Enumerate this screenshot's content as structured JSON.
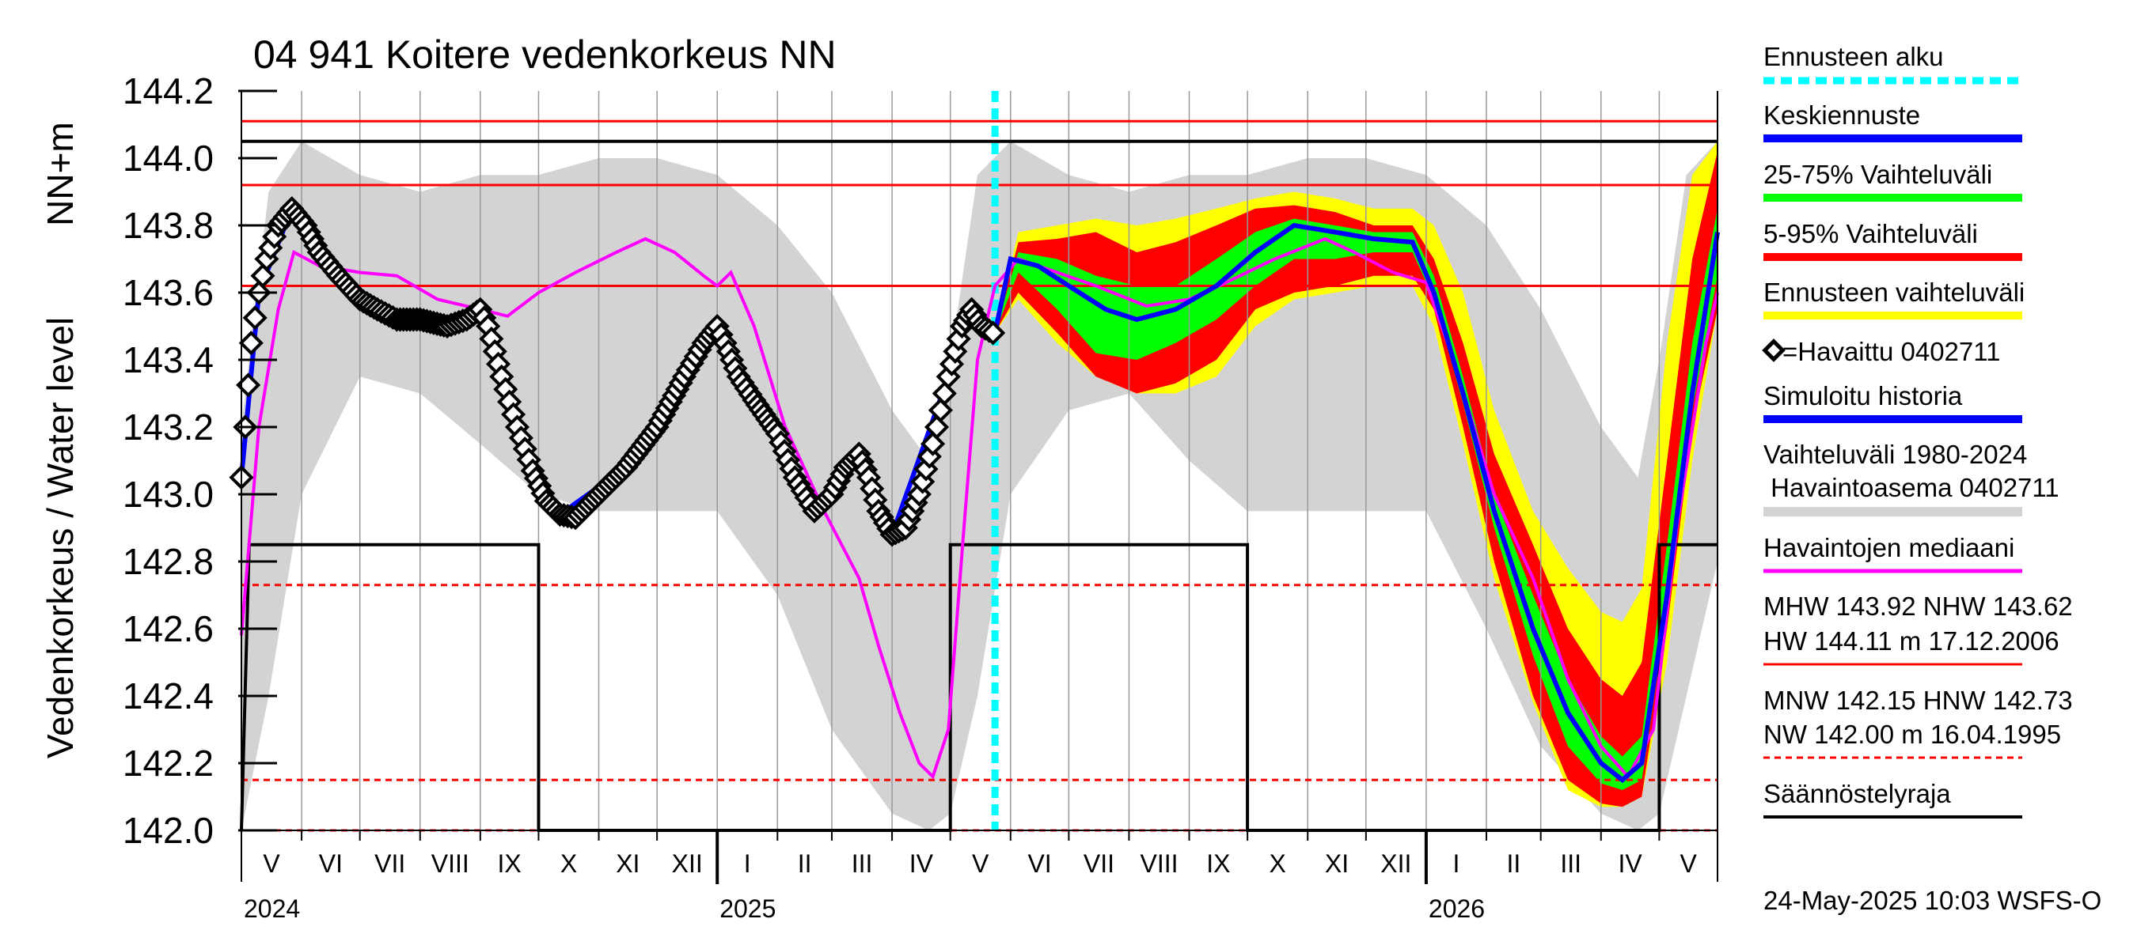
{
  "chart_data": {
    "type": "line",
    "title": "04 941 Koitere vedenkorkeus NN",
    "ylabel": "Vedenkorkeus / Water level",
    "yunit": "NN+m",
    "ylim": [
      142.0,
      144.2
    ],
    "yticks": [
      "142.0",
      "142.2",
      "142.4",
      "142.6",
      "142.8",
      "143.0",
      "143.2",
      "143.4",
      "143.6",
      "143.8",
      "144.0",
      "144.2"
    ],
    "xlim": [
      "2024-05-01",
      "2026-05-31"
    ],
    "month_labels": [
      "V",
      "VI",
      "VII",
      "VIII",
      "IX",
      "X",
      "XI",
      "XII",
      "I",
      "II",
      "III",
      "IV",
      "V",
      "VI",
      "VII",
      "VIII",
      "IX",
      "X",
      "XI",
      "XII",
      "I",
      "II",
      "III",
      "IV",
      "V"
    ],
    "year_labels": [
      "2024",
      "2025",
      "2026"
    ],
    "forecast_start": "2025-05-24",
    "reference_lines": {
      "HW": 144.11,
      "MHW": 143.92,
      "NHW": 143.62,
      "HNW": 142.73,
      "MNW": 142.15,
      "NW": 142.0,
      "upper_black": 144.05
    },
    "regulation_limit": [
      {
        "date": "2024-05-01",
        "value": 142.0
      },
      {
        "date": "2024-05-05",
        "value": 142.85
      },
      {
        "date": "2024-10-01",
        "value": 142.85
      },
      {
        "date": "2024-10-01",
        "value": 142.0
      },
      {
        "date": "2025-05-01",
        "value": 142.0
      },
      {
        "date": "2025-05-01",
        "value": 142.85
      },
      {
        "date": "2025-10-01",
        "value": 142.85
      },
      {
        "date": "2025-10-01",
        "value": 142.0
      },
      {
        "date": "2026-05-01",
        "value": 142.0
      },
      {
        "date": "2026-05-01",
        "value": 142.85
      },
      {
        "date": "2026-05-31",
        "value": 142.85
      }
    ],
    "observed": [
      {
        "date": "2024-05-01",
        "value": 143.05
      },
      {
        "date": "2024-05-03",
        "value": 143.2
      },
      {
        "date": "2024-05-06",
        "value": 143.45
      },
      {
        "date": "2024-05-10",
        "value": 143.6
      },
      {
        "date": "2024-05-14",
        "value": 143.7
      },
      {
        "date": "2024-05-20",
        "value": 143.8
      },
      {
        "date": "2024-05-27",
        "value": 143.85
      },
      {
        "date": "2024-06-03",
        "value": 143.8
      },
      {
        "date": "2024-06-10",
        "value": 143.72
      },
      {
        "date": "2024-06-20",
        "value": 143.65
      },
      {
        "date": "2024-07-01",
        "value": 143.58
      },
      {
        "date": "2024-07-10",
        "value": 143.55
      },
      {
        "date": "2024-07-20",
        "value": 143.52
      },
      {
        "date": "2024-08-01",
        "value": 143.52
      },
      {
        "date": "2024-08-15",
        "value": 143.5
      },
      {
        "date": "2024-08-25",
        "value": 143.52
      },
      {
        "date": "2024-09-01",
        "value": 143.55
      },
      {
        "date": "2024-09-05",
        "value": 143.5
      },
      {
        "date": "2024-09-12",
        "value": 143.35
      },
      {
        "date": "2024-09-20",
        "value": 143.2
      },
      {
        "date": "2024-09-28",
        "value": 143.07
      },
      {
        "date": "2024-10-05",
        "value": 142.98
      },
      {
        "date": "2024-10-12",
        "value": 142.94
      },
      {
        "date": "2024-10-20",
        "value": 142.93
      },
      {
        "date": "2024-11-01",
        "value": 143.0
      },
      {
        "date": "2024-11-15",
        "value": 143.08
      },
      {
        "date": "2024-12-01",
        "value": 143.2
      },
      {
        "date": "2024-12-15",
        "value": 143.35
      },
      {
        "date": "2024-12-25",
        "value": 143.45
      },
      {
        "date": "2025-01-01",
        "value": 143.5
      },
      {
        "date": "2025-01-05",
        "value": 143.45
      },
      {
        "date": "2025-01-12",
        "value": 143.35
      },
      {
        "date": "2025-01-20",
        "value": 143.28
      },
      {
        "date": "2025-02-01",
        "value": 143.18
      },
      {
        "date": "2025-02-10",
        "value": 143.05
      },
      {
        "date": "2025-02-20",
        "value": 142.95
      },
      {
        "date": "2025-03-01",
        "value": 143.0
      },
      {
        "date": "2025-03-08",
        "value": 143.08
      },
      {
        "date": "2025-03-15",
        "value": 143.12
      },
      {
        "date": "2025-03-20",
        "value": 143.05
      },
      {
        "date": "2025-03-25",
        "value": 142.95
      },
      {
        "date": "2025-04-01",
        "value": 142.88
      },
      {
        "date": "2025-04-08",
        "value": 142.9
      },
      {
        "date": "2025-04-15",
        "value": 143.0
      },
      {
        "date": "2025-04-22",
        "value": 143.15
      },
      {
        "date": "2025-04-30",
        "value": 143.35
      },
      {
        "date": "2025-05-07",
        "value": 143.5
      },
      {
        "date": "2025-05-12",
        "value": 143.55
      },
      {
        "date": "2025-05-17",
        "value": 143.5
      },
      {
        "date": "2025-05-23",
        "value": 143.48
      }
    ],
    "observed_median": [
      {
        "date": "2024-05-01",
        "value": 142.58
      },
      {
        "date": "2024-05-10",
        "value": 143.2
      },
      {
        "date": "2024-05-20",
        "value": 143.55
      },
      {
        "date": "2024-05-28",
        "value": 143.72
      },
      {
        "date": "2024-06-10",
        "value": 143.68
      },
      {
        "date": "2024-07-01",
        "value": 143.66
      },
      {
        "date": "2024-07-20",
        "value": 143.65
      },
      {
        "date": "2024-08-10",
        "value": 143.58
      },
      {
        "date": "2024-09-01",
        "value": 143.55
      },
      {
        "date": "2024-09-15",
        "value": 143.53
      },
      {
        "date": "2024-10-01",
        "value": 143.6
      },
      {
        "date": "2024-10-20",
        "value": 143.66
      },
      {
        "date": "2024-11-10",
        "value": 143.72
      },
      {
        "date": "2024-11-25",
        "value": 143.76
      },
      {
        "date": "2024-12-10",
        "value": 143.72
      },
      {
        "date": "2024-12-25",
        "value": 143.65
      },
      {
        "date": "2025-01-01",
        "value": 143.62
      },
      {
        "date": "2025-01-08",
        "value": 143.66
      },
      {
        "date": "2025-01-20",
        "value": 143.5
      },
      {
        "date": "2025-02-05",
        "value": 143.2
      },
      {
        "date": "2025-02-25",
        "value": 142.95
      },
      {
        "date": "2025-03-15",
        "value": 142.75
      },
      {
        "date": "2025-03-25",
        "value": 142.55
      },
      {
        "date": "2025-04-05",
        "value": 142.35
      },
      {
        "date": "2025-04-15",
        "value": 142.2
      },
      {
        "date": "2025-04-22",
        "value": 142.16
      },
      {
        "date": "2025-04-30",
        "value": 142.3
      },
      {
        "date": "2025-05-08",
        "value": 142.9
      },
      {
        "date": "2025-05-15",
        "value": 143.4
      },
      {
        "date": "2025-05-24",
        "value": 143.62
      },
      {
        "date": "2025-06-05",
        "value": 143.7
      },
      {
        "date": "2025-06-25",
        "value": 143.66
      },
      {
        "date": "2025-07-15",
        "value": 143.62
      },
      {
        "date": "2025-08-10",
        "value": 143.56
      },
      {
        "date": "2025-09-01",
        "value": 143.58
      },
      {
        "date": "2025-09-20",
        "value": 143.63
      },
      {
        "date": "2025-10-15",
        "value": 143.7
      },
      {
        "date": "2025-11-10",
        "value": 143.76
      },
      {
        "date": "2025-11-25",
        "value": 143.72
      },
      {
        "date": "2025-12-15",
        "value": 143.66
      },
      {
        "date": "2026-01-01",
        "value": 143.63
      },
      {
        "date": "2026-01-15",
        "value": 143.4
      },
      {
        "date": "2026-02-05",
        "value": 143.0
      },
      {
        "date": "2026-02-25",
        "value": 142.75
      },
      {
        "date": "2026-03-15",
        "value": 142.45
      },
      {
        "date": "2026-04-01",
        "value": 142.25
      },
      {
        "date": "2026-04-15",
        "value": 142.16
      },
      {
        "date": "2026-04-28",
        "value": 142.3
      },
      {
        "date": "2026-05-10",
        "value": 142.9
      },
      {
        "date": "2026-05-25",
        "value": 143.45
      },
      {
        "date": "2026-05-31",
        "value": 143.6
      }
    ],
    "forecast_mean": [
      {
        "date": "2025-05-24",
        "value": 143.48
      },
      {
        "date": "2025-06-01",
        "value": 143.7
      },
      {
        "date": "2025-06-15",
        "value": 143.68
      },
      {
        "date": "2025-07-01",
        "value": 143.62
      },
      {
        "date": "2025-07-20",
        "value": 143.55
      },
      {
        "date": "2025-08-05",
        "value": 143.52
      },
      {
        "date": "2025-08-25",
        "value": 143.55
      },
      {
        "date": "2025-09-15",
        "value": 143.62
      },
      {
        "date": "2025-10-05",
        "value": 143.72
      },
      {
        "date": "2025-10-25",
        "value": 143.8
      },
      {
        "date": "2025-11-15",
        "value": 143.78
      },
      {
        "date": "2025-12-05",
        "value": 143.76
      },
      {
        "date": "2025-12-25",
        "value": 143.75
      },
      {
        "date": "2026-01-05",
        "value": 143.6
      },
      {
        "date": "2026-01-20",
        "value": 143.3
      },
      {
        "date": "2026-02-05",
        "value": 142.95
      },
      {
        "date": "2026-02-25",
        "value": 142.6
      },
      {
        "date": "2026-03-15",
        "value": 142.35
      },
      {
        "date": "2026-04-01",
        "value": 142.2
      },
      {
        "date": "2026-04-12",
        "value": 142.15
      },
      {
        "date": "2026-04-22",
        "value": 142.2
      },
      {
        "date": "2026-05-05",
        "value": 142.7
      },
      {
        "date": "2026-05-18",
        "value": 143.3
      },
      {
        "date": "2026-05-31",
        "value": 143.78
      }
    ],
    "simulated_history": [
      {
        "date": "2024-05-01",
        "value": 143.05
      },
      {
        "date": "2024-05-10",
        "value": 143.6
      },
      {
        "date": "2024-05-27",
        "value": 143.85
      },
      {
        "date": "2024-06-20",
        "value": 143.66
      },
      {
        "date": "2024-07-15",
        "value": 143.54
      },
      {
        "date": "2024-08-15",
        "value": 143.5
      },
      {
        "date": "2024-09-01",
        "value": 143.55
      },
      {
        "date": "2024-09-20",
        "value": 143.2
      },
      {
        "date": "2024-10-12",
        "value": 142.94
      },
      {
        "date": "2024-11-15",
        "value": 143.08
      },
      {
        "date": "2024-12-25",
        "value": 143.45
      },
      {
        "date": "2025-01-01",
        "value": 143.5
      },
      {
        "date": "2025-02-01",
        "value": 143.18
      },
      {
        "date": "2025-02-20",
        "value": 142.95
      },
      {
        "date": "2025-03-15",
        "value": 143.12
      },
      {
        "date": "2025-04-01",
        "value": 142.88
      },
      {
        "date": "2025-04-30",
        "value": 143.35
      },
      {
        "date": "2025-05-12",
        "value": 143.55
      },
      {
        "date": "2025-05-23",
        "value": 143.48
      }
    ],
    "history_range_1980_2024": {
      "dates": [
        "2024-05-01",
        "2024-05-15",
        "2024-06-01",
        "2024-07-01",
        "2024-08-01",
        "2024-09-01",
        "2024-10-01",
        "2024-11-01",
        "2024-12-01",
        "2025-01-01",
        "2025-02-01",
        "2025-03-01",
        "2025-04-01",
        "2025-04-20",
        "2025-05-01",
        "2025-05-15",
        "2025-06-01",
        "2025-07-01",
        "2025-08-01",
        "2025-09-01",
        "2025-10-01",
        "2025-11-01",
        "2025-12-01",
        "2026-01-01",
        "2026-02-01",
        "2026-03-01",
        "2026-04-01",
        "2026-04-20",
        "2026-05-01",
        "2026-05-15",
        "2026-05-31"
      ],
      "low": [
        142.0,
        142.4,
        143.0,
        143.35,
        143.3,
        143.15,
        143.0,
        142.95,
        142.95,
        142.95,
        142.7,
        142.3,
        142.05,
        142.0,
        142.05,
        142.4,
        143.0,
        143.25,
        143.3,
        143.1,
        142.95,
        142.95,
        142.95,
        142.95,
        142.6,
        142.25,
        142.05,
        142.0,
        142.05,
        142.4,
        142.8
      ],
      "high": [
        143.2,
        143.9,
        144.05,
        143.95,
        143.9,
        143.95,
        143.95,
        144.0,
        144.0,
        143.95,
        143.8,
        143.6,
        143.25,
        143.1,
        143.4,
        143.95,
        144.05,
        143.95,
        143.9,
        143.95,
        143.95,
        144.0,
        144.0,
        143.95,
        143.8,
        143.55,
        143.2,
        143.05,
        143.4,
        143.95,
        144.05
      ]
    },
    "forecast_bands": {
      "dates": [
        "2025-05-24",
        "2025-06-05",
        "2025-06-25",
        "2025-07-15",
        "2025-08-05",
        "2025-08-25",
        "2025-09-15",
        "2025-10-05",
        "2025-10-25",
        "2025-11-15",
        "2025-12-05",
        "2025-12-25",
        "2026-01-05",
        "2026-01-20",
        "2026-02-05",
        "2026-02-25",
        "2026-03-15",
        "2026-04-01",
        "2026-04-12",
        "2026-04-22",
        "2026-05-05",
        "2026-05-18",
        "2026-05-31"
      ],
      "p05": [
        143.48,
        143.6,
        143.48,
        143.35,
        143.3,
        143.33,
        143.4,
        143.55,
        143.6,
        143.62,
        143.65,
        143.65,
        143.55,
        143.2,
        142.8,
        142.4,
        142.15,
        142.08,
        142.07,
        142.1,
        142.6,
        143.2,
        143.55
      ],
      "p25": [
        143.48,
        143.66,
        143.55,
        143.42,
        143.4,
        143.45,
        143.52,
        143.62,
        143.7,
        143.7,
        143.72,
        143.72,
        143.58,
        143.27,
        142.9,
        142.52,
        142.25,
        142.14,
        142.12,
        142.15,
        142.65,
        143.25,
        143.65
      ],
      "p75": [
        143.48,
        143.72,
        143.7,
        143.65,
        143.62,
        143.62,
        143.7,
        143.78,
        143.82,
        143.8,
        143.78,
        143.78,
        143.65,
        143.35,
        143.0,
        142.7,
        142.45,
        142.28,
        142.22,
        142.28,
        142.85,
        143.45,
        143.85
      ],
      "p95": [
        143.48,
        143.75,
        143.76,
        143.78,
        143.72,
        143.75,
        143.8,
        143.85,
        143.86,
        143.84,
        143.8,
        143.8,
        143.7,
        143.45,
        143.12,
        142.85,
        142.6,
        142.45,
        142.4,
        142.5,
        143.1,
        143.7,
        144.02
      ],
      "min": [
        143.48,
        143.58,
        143.45,
        143.35,
        143.3,
        143.3,
        143.35,
        143.5,
        143.58,
        143.6,
        143.62,
        143.62,
        143.5,
        143.15,
        142.75,
        142.38,
        142.12,
        142.07,
        142.07,
        142.1,
        142.5,
        143.1,
        143.55
      ],
      "max": [
        143.48,
        143.78,
        143.8,
        143.82,
        143.8,
        143.82,
        143.85,
        143.88,
        143.9,
        143.88,
        143.85,
        143.85,
        143.8,
        143.6,
        143.25,
        142.95,
        142.78,
        142.65,
        142.62,
        142.72,
        143.45,
        143.95,
        144.05
      ]
    }
  },
  "legend": {
    "forecast_start": "Ennusteen alku",
    "mean_forecast": "Keskiennuste",
    "band_25_75": "25-75% Vaihteluväli",
    "band_5_95": "5-95% Vaihteluväli",
    "forecast_range": "Ennusteen vaihteluväli",
    "observed": "=Havaittu 0402711",
    "simulated": "Simuloitu historia",
    "history_range_1": "Vaihteluväli 1980-2024",
    "history_range_2": " Havaintoasema 0402711",
    "median": "Havaintojen mediaani",
    "mhw_line": "MHW 143.92 NHW 143.62",
    "hw_line": "HW 144.11 m 17.12.2006",
    "mnw_line": "MNW 142.15 HNW 142.73",
    "nw_line": "NW 142.00 m 16.04.1995",
    "regulation": "Säännöstelyraja"
  },
  "timestamp": "24-May-2025 10:03 WSFS-O",
  "colors": {
    "history_band": "#d3d3d3",
    "forecast_range": "#ffff00",
    "band_5_95": "#ff0000",
    "band_25_75": "#00ff00",
    "mean": "#0000ff",
    "median": "#ff00ff",
    "forecast_start": "#00ffff",
    "reference": "#ff0000",
    "regulation": "#000000"
  }
}
